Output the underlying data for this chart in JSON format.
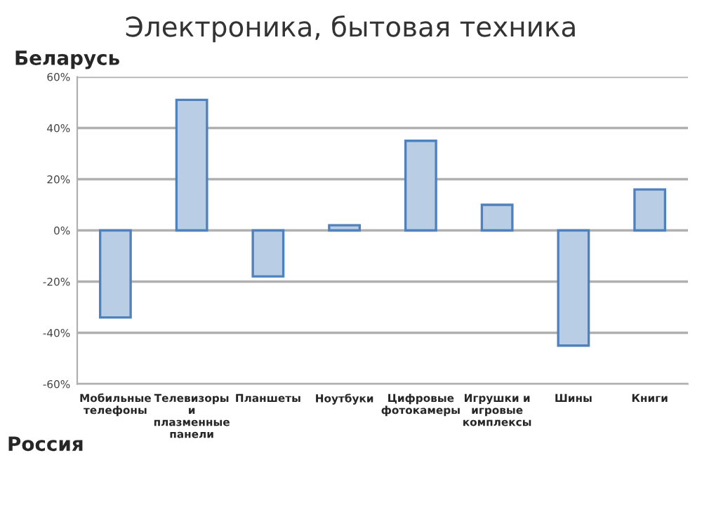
{
  "chart_data": {
    "type": "bar",
    "title": "Электроника, бытовая техника",
    "categories": [
      "Мобильные\nтелефоны",
      "Телевизоры\nи\nплазменные\nпанели",
      "Планшеты",
      "Ноутбуки",
      "Цифровые\nфотокамеры",
      "Игрушки и\nигровые\nкомплексы",
      "Шины",
      "Книги"
    ],
    "values": [
      -34,
      51,
      -18,
      2,
      35,
      10,
      -45,
      16
    ],
    "color": "#b9cde5",
    "ylim": [
      -60,
      60
    ],
    "yticks": [
      {
        "value": -60,
        "label": "-60%"
      },
      {
        "value": -40,
        "label": "-40%"
      },
      {
        "value": -20,
        "label": "-20%"
      },
      {
        "value": 0,
        "label": "0%"
      },
      {
        "value": 20,
        "label": "20%"
      },
      {
        "value": 40,
        "label": "40%"
      },
      {
        "value": 60,
        "label": "60%"
      }
    ],
    "grid": "y",
    "annotations": [
      "Беларусь",
      "Россия"
    ]
  }
}
